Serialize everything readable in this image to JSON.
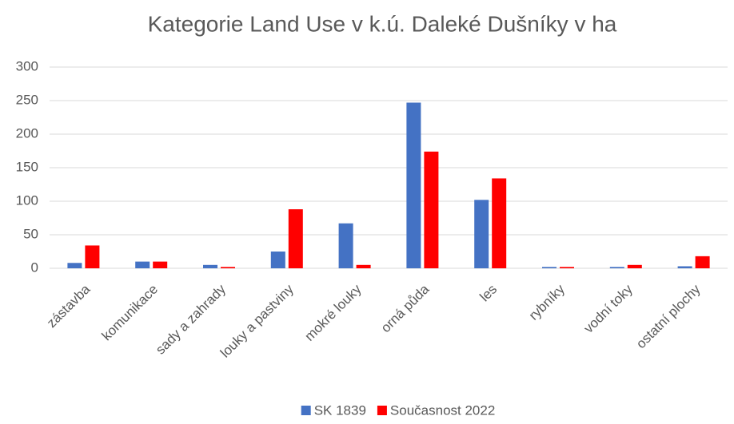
{
  "chart_data": {
    "type": "bar",
    "title": "Kategorie Land Use v k.ú. Daleké Dušníky v ha",
    "categories": [
      "zástavba",
      "komunikace",
      "sady a zahrady",
      "louky a pastviny",
      "mokré louky",
      "orná půda",
      "les",
      "rybníky",
      "vodní toky",
      "ostatní plochy"
    ],
    "series": [
      {
        "name": "SK 1839",
        "color": "#4472c4",
        "values": [
          8,
          10,
          5,
          25,
          67,
          247,
          102,
          2,
          2,
          3
        ]
      },
      {
        "name": "Současnost 2022",
        "color": "#ff0000",
        "values": [
          34,
          10,
          2,
          88,
          5,
          174,
          134,
          2,
          5,
          18
        ]
      }
    ],
    "ylim": [
      0,
      300
    ],
    "yticks": [
      0,
      50,
      100,
      150,
      200,
      250,
      300
    ],
    "grid": true,
    "legend": "bottom"
  }
}
